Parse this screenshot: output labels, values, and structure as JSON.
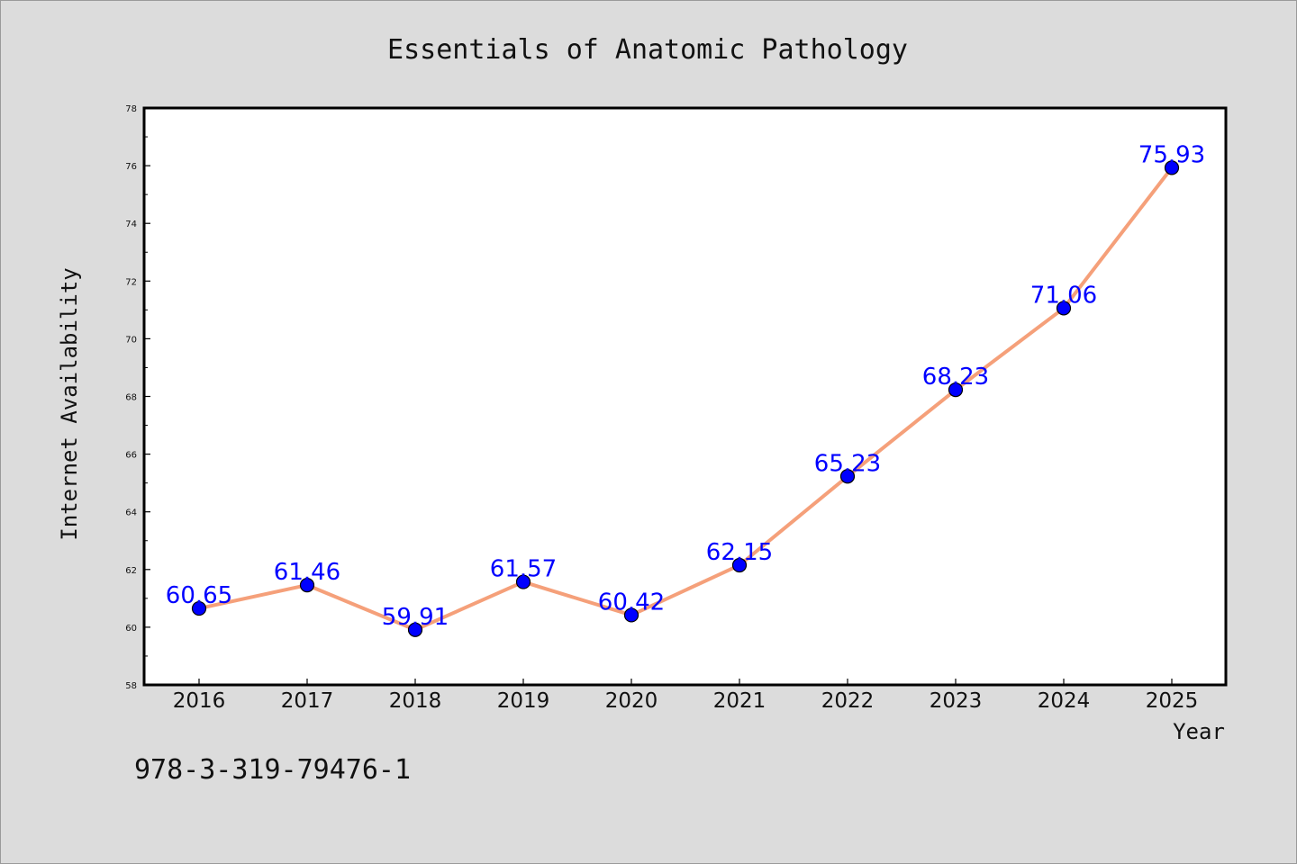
{
  "chart_data": {
    "type": "line",
    "title": "Essentials of Anatomic Pathology",
    "xlabel": "Year",
    "ylabel": "Internet Availability",
    "categories": [
      "2016",
      "2017",
      "2018",
      "2019",
      "2020",
      "2021",
      "2022",
      "2023",
      "2024",
      "2025"
    ],
    "series": [
      {
        "values": [
          60.65,
          61.46,
          59.91,
          61.57,
          60.42,
          62.15,
          65.23,
          68.23,
          71.06,
          75.93
        ],
        "line_color": "#f5a07a",
        "marker_color": "#0000ff"
      }
    ],
    "data_labels": [
      "60.65",
      "61.46",
      "59.91",
      "61.57",
      "60.42",
      "62.15",
      "65.23",
      "68.23",
      "71.06",
      "75.93"
    ],
    "ylim": [
      58,
      78
    ],
    "yticks": [
      "58",
      "60",
      "62",
      "64",
      "66",
      "68",
      "70",
      "72",
      "74",
      "76",
      "78"
    ],
    "grid": false,
    "legend": "none"
  },
  "footer": {
    "isbn": "978-3-319-79476-1"
  }
}
